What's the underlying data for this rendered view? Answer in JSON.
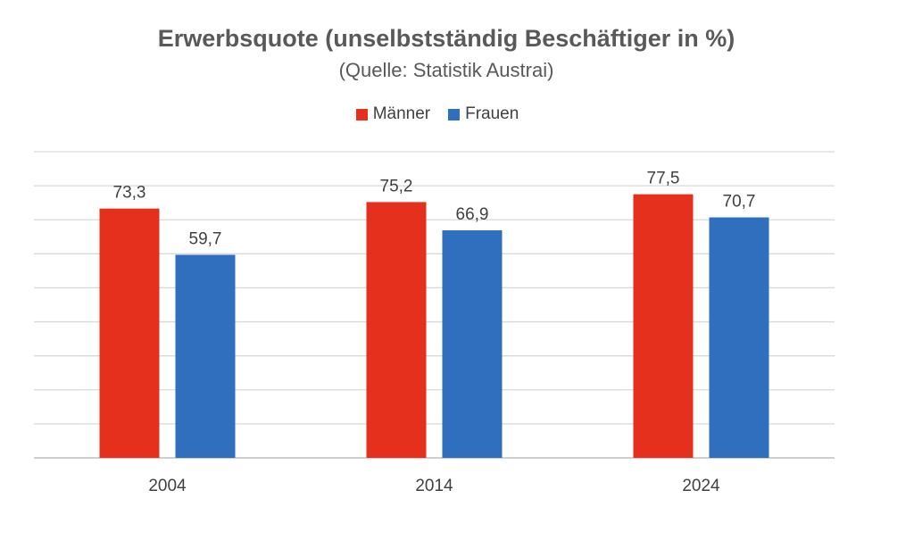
{
  "chart_data": {
    "type": "bar",
    "title": "Erwerbsquote (unselbstständig Beschäftiger in %)",
    "subtitle": "(Quelle: Statistik Austrai)",
    "categories": [
      "2004",
      "2014",
      "2024"
    ],
    "series": [
      {
        "name": "Männer",
        "color": "#e5301e",
        "values": [
          73.3,
          75.2,
          77.5
        ],
        "labels": [
          "73,3",
          "75,2",
          "77,5"
        ]
      },
      {
        "name": "Frauen",
        "color": "#2f6fbe",
        "values": [
          59.7,
          66.9,
          70.7
        ],
        "labels": [
          "59,7",
          "66,9",
          "70,7"
        ]
      }
    ],
    "ylim": [
      0,
      90
    ],
    "grid": true,
    "legend_position": "top"
  }
}
